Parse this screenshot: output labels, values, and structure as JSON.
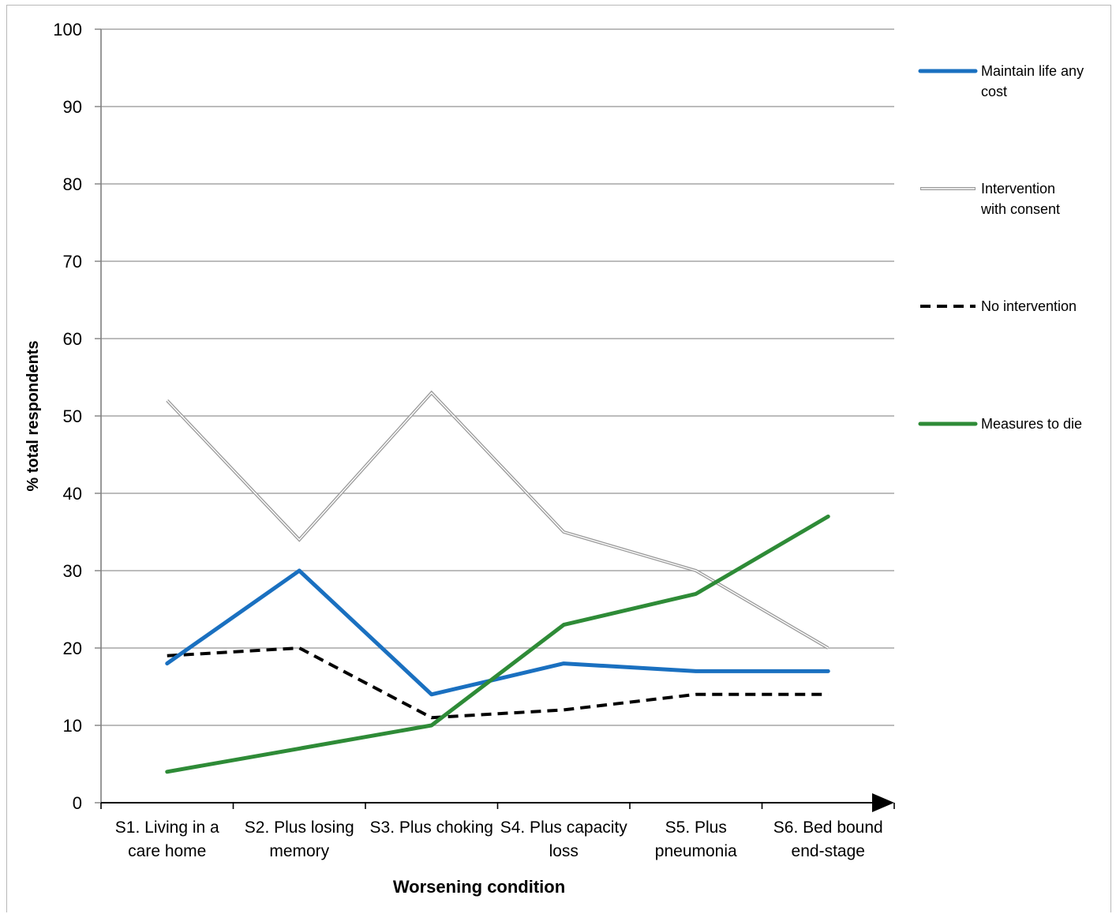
{
  "chart_data": {
    "type": "line",
    "title": "",
    "xlabel": "Worsening condition",
    "ylabel": "% total respondents",
    "ylim": [
      0,
      100
    ],
    "yticks": [
      0,
      10,
      20,
      30,
      40,
      50,
      60,
      70,
      80,
      90,
      100
    ],
    "grid": true,
    "legend_position": "right",
    "categories": [
      [
        "S1. Living in a",
        "care home"
      ],
      [
        "S2. Plus losing",
        "memory"
      ],
      [
        "S3. Plus choking"
      ],
      [
        "S4. Plus capacity",
        "loss"
      ],
      [
        "S5. Plus",
        "pneumonia"
      ],
      [
        "S6. Bed bound",
        "end-stage"
      ]
    ],
    "series": [
      {
        "name": "Maintain life any cost",
        "name_lines": [
          "Maintain life any",
          "cost"
        ],
        "values": [
          18,
          30,
          14,
          18,
          17,
          17
        ],
        "color": "#1a70c0",
        "style": "solid"
      },
      {
        "name": "Intervention with consent",
        "name_lines": [
          "Intervention",
          "with consent"
        ],
        "values": [
          52,
          34,
          53,
          35,
          30,
          20
        ],
        "color": "#9a9a9a",
        "style": "double"
      },
      {
        "name": "No intervention",
        "name_lines": [
          "No intervention"
        ],
        "values": [
          19,
          20,
          11,
          12,
          14,
          14
        ],
        "color": "#000000",
        "style": "dashed"
      },
      {
        "name": "Measures to die",
        "name_lines": [
          "Measures to die"
        ],
        "values": [
          4,
          7,
          10,
          23,
          27,
          37
        ],
        "color": "#2e8b37",
        "style": "solid"
      }
    ]
  }
}
